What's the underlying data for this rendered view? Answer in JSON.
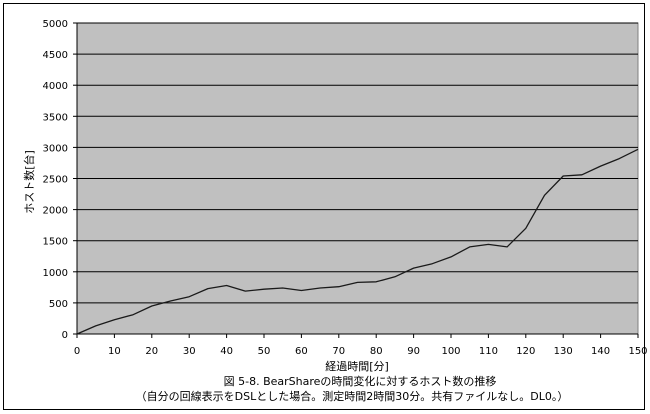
{
  "chart_data": {
    "type": "line",
    "title": "図 5-8. BearShareの時間変化に対するホスト数の推移",
    "subtitle": "（自分の回線表示をDSLとした場合。測定時間2時間30分。共有ファイルなし。DL0。）",
    "xlabel": "経過時間[分]",
    "ylabel": "ホスト数[台]",
    "xlim": [
      0,
      150
    ],
    "ylim": [
      0,
      5000
    ],
    "xticks": [
      0,
      10,
      20,
      30,
      40,
      50,
      60,
      70,
      80,
      90,
      100,
      110,
      120,
      130,
      140,
      150
    ],
    "yticks": [
      0,
      500,
      1000,
      1500,
      2000,
      2500,
      3000,
      3500,
      4000,
      4500,
      5000
    ],
    "grid": true,
    "colors": {
      "plot_bg": "#c0c0c0",
      "line": "#1a1a1a",
      "grid": "#000000"
    },
    "series": [
      {
        "x": [
          0,
          5,
          10,
          15,
          20,
          25,
          30,
          35,
          40,
          45,
          50,
          55,
          60,
          65,
          70,
          75,
          80,
          85,
          90,
          95,
          100,
          105,
          110,
          115,
          120,
          125,
          130,
          135,
          140,
          145,
          150
        ],
        "y": [
          0,
          130,
          230,
          310,
          450,
          530,
          600,
          730,
          780,
          690,
          720,
          740,
          700,
          740,
          760,
          830,
          840,
          920,
          1060,
          1130,
          1240,
          1400,
          1440,
          1400,
          1700,
          2230,
          2540,
          2560,
          2700,
          2820,
          2970
        ]
      }
    ]
  }
}
